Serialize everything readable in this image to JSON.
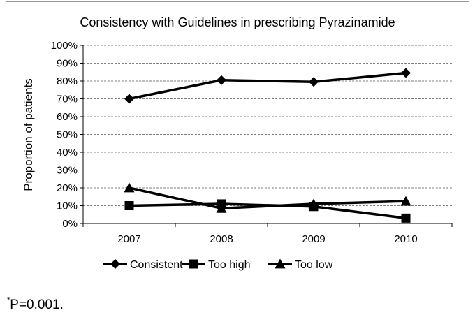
{
  "chart_data": {
    "type": "line",
    "title": "Consistency with Guidelines in prescribing Pyrazinamide",
    "xlabel": "",
    "ylabel": "Proportion of patients",
    "categories": [
      "2007",
      "2008",
      "2009",
      "2010"
    ],
    "ylim": [
      0,
      100
    ],
    "yticks": [
      "0%",
      "10%",
      "20%",
      "30%",
      "40%",
      "50%",
      "60%",
      "70%",
      "80%",
      "90%",
      "100%"
    ],
    "grid": true,
    "legend_position": "bottom",
    "series": [
      {
        "name": "Consistent",
        "marker": "diamond",
        "values": [
          70,
          80.5,
          79.5,
          84.5
        ]
      },
      {
        "name": "Too high",
        "marker": "square",
        "values": [
          10,
          11,
          9.5,
          3
        ]
      },
      {
        "name": "Too low",
        "marker": "triangle",
        "values": [
          20,
          8.5,
          11,
          12.5
        ]
      }
    ],
    "line_color": "#000000"
  },
  "footnote": {
    "marker": "*",
    "text": "P=0.001."
  }
}
